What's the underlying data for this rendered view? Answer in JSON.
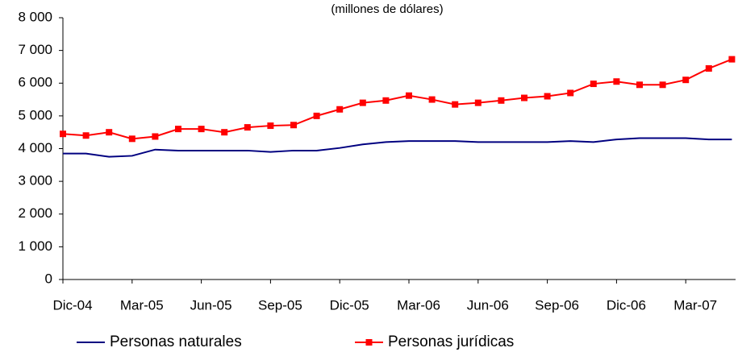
{
  "chart_data": {
    "type": "line",
    "subtitle": "(millones de dólares)",
    "categories": [
      "Dic-04",
      null,
      null,
      "Mar-05",
      null,
      null,
      "Jun-05",
      null,
      null,
      "Sep-05",
      null,
      null,
      "Dic-05",
      null,
      null,
      "Mar-06",
      null,
      null,
      "Jun-06",
      null,
      null,
      "Sep-06",
      null,
      null,
      "Dic-06",
      null,
      null,
      "Mar-07",
      null,
      null
    ],
    "series": [
      {
        "name": "Personas naturales",
        "color": "#000080",
        "marker": "none",
        "values": [
          3850,
          3850,
          3750,
          3780,
          3970,
          3940,
          3940,
          3940,
          3940,
          3900,
          3940,
          3940,
          4020,
          4130,
          4200,
          4230,
          4230,
          4230,
          4200,
          4200,
          4200,
          4200,
          4230,
          4200,
          4280,
          4320,
          4320,
          4320,
          4280,
          4280
        ]
      },
      {
        "name": "Personas jurídicas",
        "color": "#ff0000",
        "marker": "square",
        "values": [
          4450,
          4400,
          4500,
          4300,
          4370,
          4600,
          4600,
          4500,
          4650,
          4700,
          4720,
          5000,
          5200,
          5400,
          5470,
          5620,
          5500,
          5350,
          5400,
          5470,
          5550,
          5600,
          5700,
          5980,
          6050,
          5950,
          5950,
          6100,
          6450,
          6730
        ]
      }
    ],
    "ylim": [
      0,
      8000
    ],
    "yticks": [
      {
        "value": 0,
        "label": "0"
      },
      {
        "value": 1000,
        "label": "1 000"
      },
      {
        "value": 2000,
        "label": "2 000"
      },
      {
        "value": 3000,
        "label": "3 000"
      },
      {
        "value": 4000,
        "label": "4 000"
      },
      {
        "value": 5000,
        "label": "5 000"
      },
      {
        "value": 6000,
        "label": "6 000"
      },
      {
        "value": 7000,
        "label": "7 000"
      },
      {
        "value": 8000,
        "label": "8 000"
      }
    ],
    "grid": false,
    "legend": "bottom"
  }
}
